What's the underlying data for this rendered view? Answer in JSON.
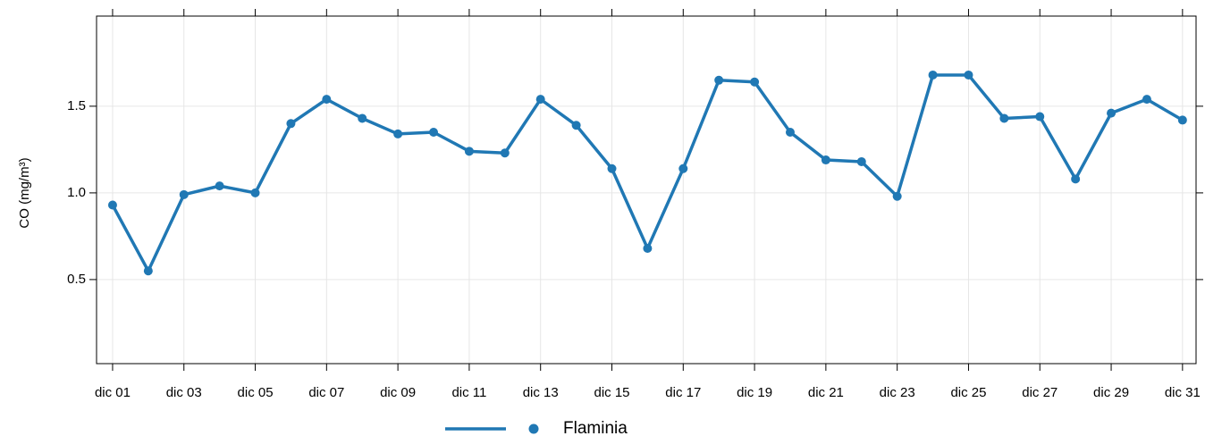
{
  "chart_data": {
    "type": "line",
    "y_label": "CO (mg/m³)",
    "x": [
      1,
      2,
      3,
      4,
      5,
      6,
      7,
      8,
      9,
      10,
      11,
      12,
      13,
      14,
      15,
      16,
      17,
      18,
      19,
      20,
      21,
      22,
      23,
      24,
      25,
      26,
      27,
      28,
      29,
      30,
      31
    ],
    "series": [
      {
        "name": "Flaminia",
        "color": "#2078b4",
        "values": [
          0.93,
          0.55,
          0.99,
          1.04,
          1.0,
          1.4,
          1.54,
          1.43,
          1.34,
          1.35,
          1.24,
          1.23,
          1.54,
          1.39,
          1.14,
          0.68,
          1.14,
          1.65,
          1.64,
          1.35,
          1.19,
          1.18,
          0.98,
          1.68,
          1.68,
          1.43,
          1.44,
          1.08,
          1.46,
          1.54,
          1.42
        ]
      }
    ],
    "xlim": [
      0.55,
      31.38
    ],
    "xticks": [
      {
        "value": 1,
        "label": "dic 01"
      },
      {
        "value": 3,
        "label": "dic 03"
      },
      {
        "value": 5,
        "label": "dic 05"
      },
      {
        "value": 7,
        "label": "dic 07"
      },
      {
        "value": 9,
        "label": "dic 09"
      },
      {
        "value": 11,
        "label": "dic 11"
      },
      {
        "value": 13,
        "label": "dic 13"
      },
      {
        "value": 15,
        "label": "dic 15"
      },
      {
        "value": 17,
        "label": "dic 17"
      },
      {
        "value": 19,
        "label": "dic 19"
      },
      {
        "value": 21,
        "label": "dic 21"
      },
      {
        "value": 23,
        "label": "dic 23"
      },
      {
        "value": 25,
        "label": "dic 25"
      },
      {
        "value": 27,
        "label": "dic 27"
      },
      {
        "value": 29,
        "label": "dic 29"
      },
      {
        "value": 31,
        "label": "dic 31"
      }
    ],
    "ylim": [
      0.015,
      2.02
    ],
    "yticks": [
      0.5,
      {
        "value": 1.0,
        "label": "1.0"
      },
      1.5
    ],
    "grid": true,
    "legend": "bottom"
  }
}
